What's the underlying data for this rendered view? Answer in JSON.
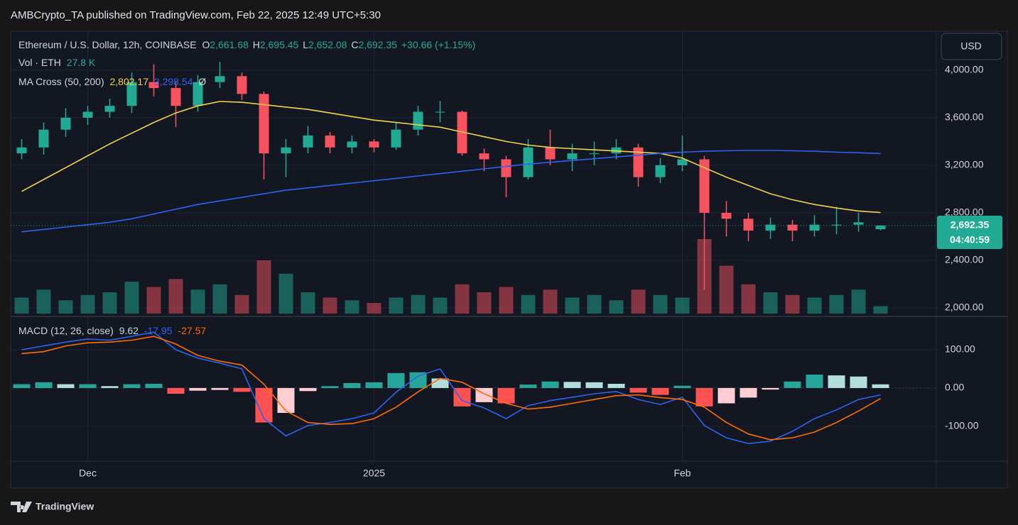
{
  "header": {
    "published": "AMBCrypto_TA published on TradingView.com, Feb 22, 2025 12:49 UTC+5:30",
    "currency": "USD",
    "brand": "TradingView"
  },
  "chart_data": [
    {
      "type": "candlestick",
      "legend": {
        "symbol": "Ethereum / U.S. Dollar, 12h, COINBASE",
        "o": "O",
        "open": "2,661.68",
        "h": "H",
        "high": "2,695.45",
        "l": "L",
        "low": "2,652.08",
        "c": "C",
        "close": "2,692.35",
        "change": "+30.66 (+1.15%)",
        "vol_title": "Vol · ETH",
        "vol_value": "27.8 K",
        "ma_title": "MA Cross (50, 200)",
        "ma50": "2,802.17",
        "ma200": "3,298.54",
        "ma_extra": "Ø"
      },
      "price_label": "2,692.35",
      "countdown": "04:40:59",
      "categories": [
        null,
        null,
        null,
        "Dec",
        null,
        null,
        null,
        null,
        null,
        null,
        null,
        null,
        null,
        null,
        null,
        null,
        "2025",
        null,
        null,
        null,
        null,
        null,
        null,
        null,
        null,
        null,
        null,
        null,
        null,
        null,
        "Feb",
        null,
        null,
        null,
        null,
        null,
        null,
        null,
        null,
        null
      ],
      "open": [
        3300,
        3350,
        3500,
        3600,
        3650,
        3700,
        3900,
        3850,
        3700,
        3900,
        3950,
        3800,
        3300,
        3350,
        3450,
        3350,
        3400,
        3350,
        3500,
        3650,
        3650,
        3300,
        3250,
        3100,
        3350,
        3250,
        3300,
        3300,
        3350,
        3100,
        3200,
        3250,
        2800,
        2750,
        2650,
        2700,
        2650,
        2700,
        2700,
        2661.68
      ],
      "high": [
        3420,
        3560,
        3680,
        3700,
        3760,
        3980,
        4050,
        3900,
        3960,
        4070,
        3980,
        3820,
        3420,
        3530,
        3480,
        3450,
        3420,
        3560,
        3700,
        3740,
        3660,
        3340,
        3280,
        3420,
        3500,
        3380,
        3400,
        3420,
        3380,
        3260,
        3450,
        3280,
        2900,
        2800,
        2760,
        2740,
        2780,
        2850,
        2800,
        2695.45
      ],
      "low": [
        3250,
        3290,
        3440,
        3540,
        3600,
        3640,
        3780,
        3520,
        3650,
        3850,
        3750,
        3080,
        3100,
        3300,
        3300,
        3300,
        3310,
        3330,
        3450,
        3560,
        3280,
        3150,
        2930,
        3080,
        3200,
        3150,
        3200,
        3250,
        3020,
        3050,
        3150,
        2150,
        2600,
        2560,
        2580,
        2560,
        2600,
        2620,
        2640,
        2652.08
      ],
      "close": [
        3350,
        3500,
        3600,
        3650,
        3700,
        3900,
        3850,
        3700,
        3900,
        3950,
        3800,
        3300,
        3350,
        3450,
        3350,
        3400,
        3350,
        3500,
        3650,
        3650,
        3300,
        3250,
        3100,
        3350,
        3250,
        3300,
        3300,
        3350,
        3100,
        3200,
        3250,
        2800,
        2750,
        2650,
        2700,
        2650,
        2700,
        2700,
        2720,
        2692.35
      ],
      "volume": [
        60000,
        90000,
        50000,
        70000,
        80000,
        120000,
        100000,
        130000,
        90000,
        110000,
        70000,
        200000,
        150000,
        80000,
        60000,
        50000,
        40000,
        60000,
        70000,
        60000,
        110000,
        80000,
        100000,
        70000,
        90000,
        60000,
        70000,
        50000,
        90000,
        70000,
        60000,
        280000,
        180000,
        110000,
        80000,
        70000,
        60000,
        70000,
        90000,
        27800
      ],
      "series": [
        {
          "name": "MA 50",
          "color": "#f2d447",
          "values": [
            2980,
            3080,
            3180,
            3280,
            3380,
            3470,
            3560,
            3640,
            3700,
            3737,
            3730,
            3710,
            3690,
            3670,
            3640,
            3610,
            3580,
            3560,
            3540,
            3520,
            3480,
            3440,
            3400,
            3370,
            3350,
            3340,
            3330,
            3320,
            3310,
            3300,
            3260,
            3180,
            3100,
            3030,
            2960,
            2910,
            2870,
            2840,
            2815,
            2802.17
          ]
        },
        {
          "name": "MA 200",
          "color": "#2e62f0",
          "values": [
            2640,
            2660,
            2680,
            2700,
            2720,
            2750,
            2790,
            2830,
            2870,
            2900,
            2930,
            2960,
            2990,
            3010,
            3030,
            3050,
            3070,
            3090,
            3110,
            3130,
            3150,
            3170,
            3190,
            3210,
            3225,
            3240,
            3255,
            3270,
            3285,
            3300,
            3310,
            3318,
            3322,
            3325,
            3325,
            3322,
            3318,
            3310,
            3305,
            3298.54
          ]
        }
      ],
      "up_color": "#22ab94",
      "down_color": "#f7525f",
      "ylim": [
        1928,
        4322
      ],
      "yticks": [
        {
          "value": 4000,
          "label": "4,000.00"
        },
        {
          "value": 3600,
          "label": "3,600.00"
        },
        {
          "value": 3200,
          "label": "3,200.00"
        },
        {
          "value": 2800,
          "label": "2,800.00"
        },
        {
          "value": 2400,
          "label": "2,400.00"
        },
        {
          "value": 2000,
          "label": "2,000.00"
        }
      ],
      "grid": true
    },
    {
      "type": "macd",
      "title": "MACD (12, 26, close)",
      "value_labels": [
        "9.62",
        "-17.95",
        "-27.57"
      ],
      "histogram": [
        10,
        15,
        10,
        10,
        5,
        10,
        11,
        -15,
        -7,
        -5,
        -10,
        -90,
        -65,
        -8,
        5,
        13,
        15,
        39,
        41,
        25,
        -48,
        -37,
        -40,
        9,
        17,
        16,
        15,
        11,
        -12,
        -18,
        6,
        -48,
        -40,
        -25,
        -4,
        17,
        35,
        33,
        30,
        9.62
      ],
      "series": [
        {
          "name": "MACD",
          "color": "#2e62f0",
          "values": [
            100,
            110,
            120,
            128,
            125,
            135,
            146,
            100,
            78,
            65,
            50,
            -80,
            -125,
            -98,
            -90,
            -80,
            -65,
            -11,
            31,
            50,
            -33,
            -52,
            -80,
            -46,
            -33,
            -24,
            -15,
            -9,
            -30,
            -43,
            -24,
            -98,
            -130,
            -145,
            -139,
            -113,
            -80,
            -57,
            -30,
            -17.95
          ]
        },
        {
          "name": "Signal",
          "color": "#ff6d00",
          "values": [
            90,
            95,
            110,
            118,
            120,
            125,
            135,
            115,
            85,
            70,
            60,
            10,
            -60,
            -90,
            -95,
            -93,
            -80,
            -50,
            -10,
            25,
            15,
            -15,
            -40,
            -55,
            -50,
            -40,
            -30,
            -20,
            -18,
            -25,
            -30,
            -50,
            -90,
            -120,
            -135,
            -130,
            -115,
            -90,
            -60,
            -27.57
          ]
        }
      ],
      "ylim": [
        -191,
        187
      ],
      "yticks": [
        {
          "value": 100,
          "label": "100.00"
        },
        {
          "value": 0,
          "label": "0.00"
        },
        {
          "value": -100,
          "label": "-100.00"
        }
      ],
      "grid": true
    }
  ]
}
